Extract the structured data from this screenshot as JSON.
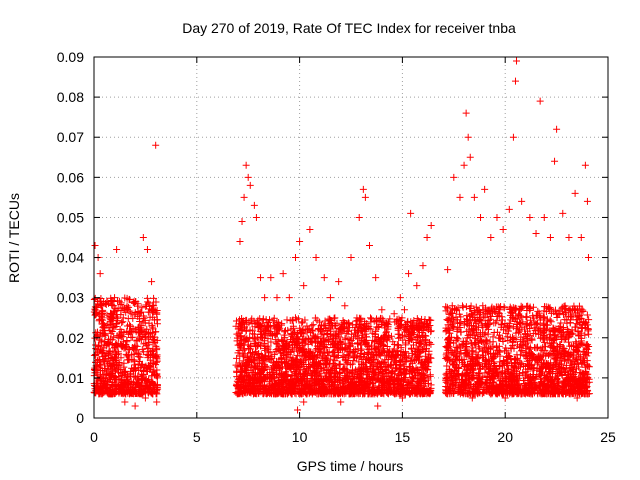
{
  "chart_data": {
    "type": "scatter",
    "title": "Day 270 of 2019, Rate Of TEC Index for receiver tnba",
    "xlabel": "GPS time / hours",
    "ylabel": "ROTI / TECUs",
    "xlim": [
      0,
      25
    ],
    "ylim": [
      0,
      0.09
    ],
    "x_ticks": [
      0,
      5,
      10,
      15,
      20,
      25
    ],
    "y_ticks": [
      0,
      0.01,
      0.02,
      0.03,
      0.04,
      0.05,
      0.06,
      0.07,
      0.08,
      0.09
    ],
    "x_tick_labels": [
      "0",
      "5",
      "10",
      "15",
      "20",
      "25"
    ],
    "y_tick_labels": [
      "0",
      "0.01",
      "0.02",
      "0.03",
      "0.04",
      "0.05",
      "0.06",
      "0.07",
      "0.08",
      "0.09"
    ],
    "grid": true,
    "marker": "+",
    "marker_color": "#ff0000",
    "series": [
      {
        "points": [
          [
            0.05,
            0.043
          ],
          [
            0.1,
            0.013
          ],
          [
            0.2,
            0.04
          ],
          [
            0.3,
            0.036
          ],
          [
            0.4,
            0.025
          ],
          [
            0.5,
            0.021
          ],
          [
            0.6,
            0.018
          ],
          [
            0.7,
            0.016
          ],
          [
            0.8,
            0.013
          ],
          [
            0.9,
            0.011
          ],
          [
            1.0,
            0.03
          ],
          [
            1.1,
            0.042
          ],
          [
            1.2,
            0.02
          ],
          [
            1.4,
            0.024
          ],
          [
            1.6,
            0.019
          ],
          [
            1.8,
            0.026
          ],
          [
            2.0,
            0.022
          ],
          [
            2.2,
            0.026
          ],
          [
            2.4,
            0.045
          ],
          [
            2.6,
            0.042
          ],
          [
            2.8,
            0.034
          ],
          [
            2.9,
            0.028
          ],
          [
            3.0,
            0.068
          ],
          [
            3.05,
            0.004
          ],
          [
            0.3,
            0.008
          ],
          [
            0.7,
            0.006
          ],
          [
            1.5,
            0.004
          ],
          [
            2.0,
            0.003
          ],
          [
            2.5,
            0.005
          ],
          [
            7.1,
            0.044
          ],
          [
            7.2,
            0.049
          ],
          [
            7.3,
            0.055
          ],
          [
            7.4,
            0.063
          ],
          [
            7.5,
            0.06
          ],
          [
            7.6,
            0.058
          ],
          [
            7.8,
            0.053
          ],
          [
            7.9,
            0.05
          ],
          [
            8.1,
            0.035
          ],
          [
            8.3,
            0.03
          ],
          [
            8.6,
            0.035
          ],
          [
            8.9,
            0.03
          ],
          [
            9.2,
            0.036
          ],
          [
            9.5,
            0.03
          ],
          [
            9.8,
            0.04
          ],
          [
            10.0,
            0.044
          ],
          [
            10.2,
            0.033
          ],
          [
            10.5,
            0.047
          ],
          [
            10.8,
            0.04
          ],
          [
            11.2,
            0.035
          ],
          [
            11.5,
            0.03
          ],
          [
            11.9,
            0.034
          ],
          [
            12.2,
            0.028
          ],
          [
            12.5,
            0.04
          ],
          [
            12.9,
            0.05
          ],
          [
            13.1,
            0.057
          ],
          [
            13.2,
            0.055
          ],
          [
            13.4,
            0.043
          ],
          [
            13.7,
            0.035
          ],
          [
            14.0,
            0.027
          ],
          [
            14.3,
            0.02
          ],
          [
            14.6,
            0.026
          ],
          [
            14.9,
            0.03
          ],
          [
            15.1,
            0.027
          ],
          [
            15.3,
            0.036
          ],
          [
            15.4,
            0.051
          ],
          [
            15.7,
            0.033
          ],
          [
            16.0,
            0.038
          ],
          [
            16.2,
            0.045
          ],
          [
            16.4,
            0.048
          ],
          [
            9.9,
            0.002
          ],
          [
            10.2,
            0.004
          ],
          [
            12.0,
            0.004
          ],
          [
            13.8,
            0.003
          ],
          [
            15.0,
            0.005
          ],
          [
            17.2,
            0.037
          ],
          [
            17.5,
            0.06
          ],
          [
            17.8,
            0.055
          ],
          [
            18.0,
            0.063
          ],
          [
            18.1,
            0.076
          ],
          [
            18.2,
            0.07
          ],
          [
            18.3,
            0.065
          ],
          [
            18.5,
            0.055
          ],
          [
            18.8,
            0.05
          ],
          [
            19.0,
            0.057
          ],
          [
            19.3,
            0.045
          ],
          [
            19.6,
            0.05
          ],
          [
            19.9,
            0.047
          ],
          [
            20.2,
            0.052
          ],
          [
            20.4,
            0.07
          ],
          [
            20.5,
            0.084
          ],
          [
            20.55,
            0.089
          ],
          [
            20.8,
            0.054
          ],
          [
            21.2,
            0.05
          ],
          [
            21.5,
            0.046
          ],
          [
            21.7,
            0.079
          ],
          [
            21.9,
            0.05
          ],
          [
            22.2,
            0.045
          ],
          [
            22.4,
            0.064
          ],
          [
            22.5,
            0.072
          ],
          [
            22.8,
            0.051
          ],
          [
            23.1,
            0.045
          ],
          [
            23.4,
            0.056
          ],
          [
            23.7,
            0.045
          ],
          [
            23.9,
            0.063
          ],
          [
            24.0,
            0.054
          ],
          [
            24.05,
            0.04
          ],
          [
            18.4,
            0.005
          ],
          [
            20.0,
            0.005
          ],
          [
            22.0,
            0.006
          ],
          [
            23.5,
            0.005
          ]
        ],
        "bands": [
          {
            "x_range": [
              0.0,
              3.1
            ],
            "y_range": [
              0.006,
              0.03
            ]
          },
          {
            "x_range": [
              6.9,
              16.4
            ],
            "y_range": [
              0.006,
              0.025
            ]
          },
          {
            "x_range": [
              17.1,
              24.1
            ],
            "y_range": [
              0.006,
              0.028
            ]
          }
        ]
      }
    ]
  }
}
